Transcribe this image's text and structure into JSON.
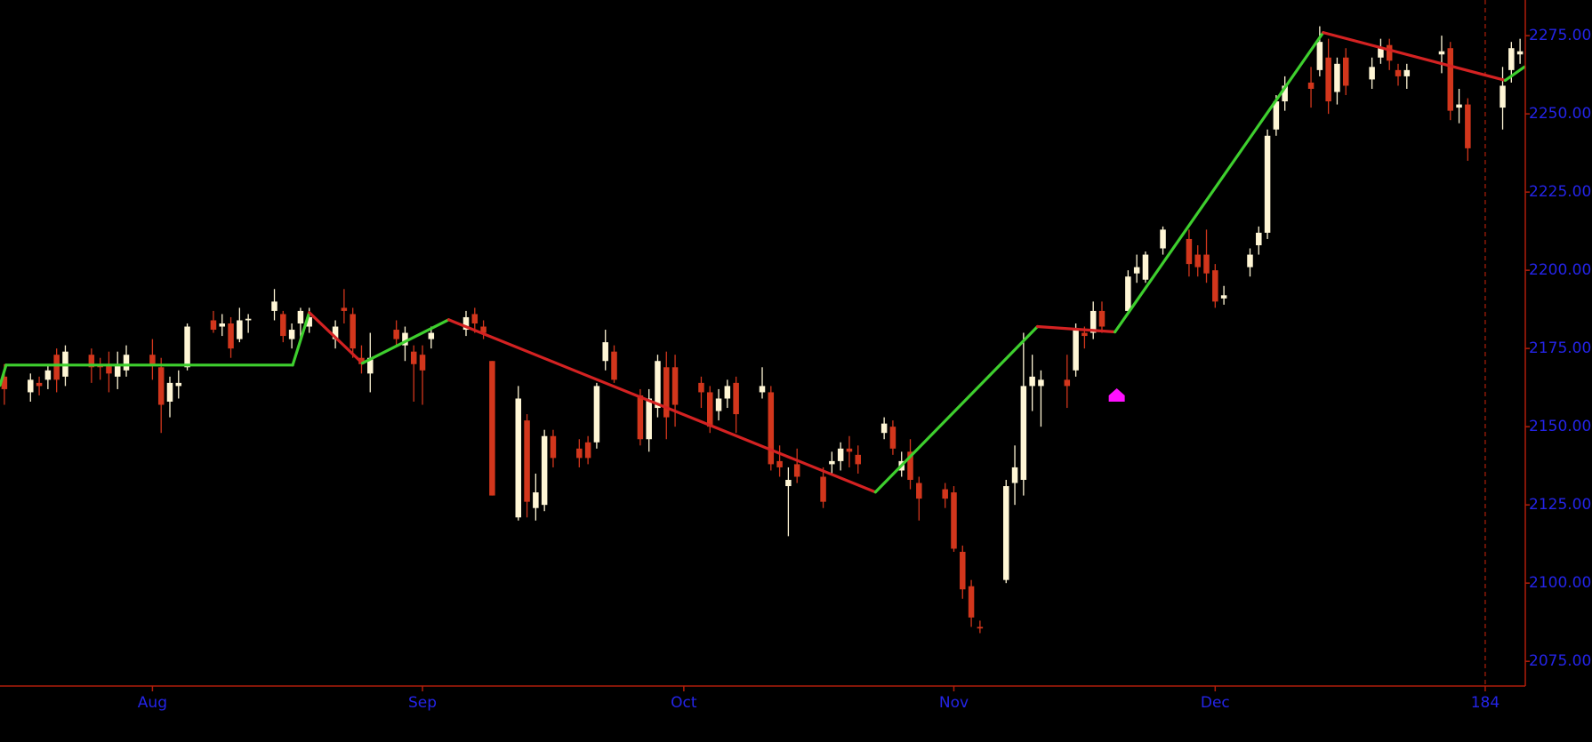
{
  "chart_data": {
    "type": "candlestick",
    "x": [
      14,
      17,
      18,
      19,
      20,
      21,
      24,
      25,
      26,
      27,
      28,
      31,
      32,
      33,
      34,
      35,
      38,
      39,
      40,
      41,
      42,
      45,
      46,
      47,
      48,
      49,
      52,
      53,
      54,
      55,
      56,
      59,
      60,
      61,
      62,
      63,
      67,
      68,
      69,
      70,
      73,
      74,
      75,
      76,
      77,
      80,
      81,
      82,
      83,
      84,
      87,
      88,
      89,
      90,
      91,
      94,
      95,
      96,
      97,
      98,
      101,
      102,
      103,
      104,
      105,
      108,
      109,
      110,
      111,
      112,
      115,
      116,
      117,
      118,
      119,
      122,
      123,
      124,
      125,
      126,
      129,
      130,
      131,
      132,
      133,
      136,
      137,
      138,
      139,
      140,
      143,
      144,
      145,
      147,
      150,
      151,
      152,
      153,
      154,
      157,
      158,
      159,
      160,
      161,
      164,
      165,
      166,
      167,
      168,
      171,
      172,
      173,
      174,
      175,
      179,
      180,
      181,
      182,
      186,
      187,
      188
    ],
    "open": [
      2166,
      2161,
      2164,
      2165,
      2173,
      2166,
      2173,
      2170,
      2170,
      2166,
      2168,
      2173,
      2169,
      2158,
      2163,
      2169,
      2184,
      2182,
      2183,
      2178,
      2184,
      2187,
      2186,
      2178,
      2183,
      2182,
      2178,
      2188,
      2186,
      2172,
      2167,
      2181,
      2176,
      2174,
      2173,
      2178,
      2181,
      2186,
      2182,
      2171,
      2121,
      2152,
      2124,
      2125,
      2147,
      2143,
      2145,
      2145,
      2171,
      2174,
      2160,
      2146,
      2156,
      2169,
      2169,
      2164,
      2161,
      2155,
      2159,
      2164,
      2161,
      2161,
      2139,
      2131,
      2138,
      2134,
      2138,
      2139,
      2143,
      2141,
      2148,
      2150,
      2136,
      2142,
      2132,
      2130,
      2129,
      2110,
      2099,
      2086,
      2101,
      2132,
      2133,
      2163,
      2163,
      2165,
      2168,
      2180,
      2180,
      2187,
      2187,
      2199,
      2197,
      2207,
      2210,
      2205,
      2205,
      2200,
      2191,
      2201,
      2208,
      2212,
      2245,
      2254,
      2260,
      2264,
      2268,
      2257,
      2268,
      2261,
      2268,
      2272,
      2264,
      2262,
      2269,
      2271,
      2252,
      2253,
      2252,
      2264,
      2269
    ],
    "high": [
      2170,
      2167,
      2166,
      2170,
      2175,
      2176,
      2175,
      2172,
      2174,
      2174,
      2176,
      2178,
      2172,
      2166,
      2168,
      2183,
      2187,
      2186,
      2185,
      2188,
      2186,
      2194,
      2187,
      2183,
      2188,
      2188,
      2184,
      2194,
      2188,
      2176,
      2180,
      2184,
      2182,
      2176,
      2176,
      2182,
      2187,
      2188,
      2184,
      2171,
      2163,
      2154,
      2135,
      2149,
      2149,
      2146,
      2147,
      2164,
      2181,
      2176,
      2162,
      2162,
      2173,
      2174,
      2173,
      2166,
      2163,
      2162,
      2165,
      2166,
      2169,
      2163,
      2144,
      2137,
      2143,
      2137,
      2142,
      2145,
      2147,
      2144,
      2153,
      2152,
      2142,
      2146,
      2134,
      2132,
      2131,
      2112,
      2101,
      2088,
      2133,
      2144,
      2180,
      2173,
      2168,
      2173,
      2183,
      2182,
      2190,
      2190,
      2200,
      2205,
      2206,
      2214,
      2213,
      2208,
      2213,
      2202,
      2195,
      2207,
      2214,
      2245,
      2256,
      2262,
      2265,
      2278,
      2274,
      2268,
      2271,
      2268,
      2274,
      2274,
      2266,
      2266,
      2275,
      2273,
      2258,
      2255,
      2265,
      2273,
      2274
    ],
    "low": [
      2157,
      2158,
      2160,
      2162,
      2161,
      2163,
      2164,
      2165,
      2161,
      2162,
      2166,
      2165,
      2148,
      2153,
      2159,
      2168,
      2180,
      2179,
      2172,
      2177,
      2180,
      2184,
      2177,
      2175,
      2178,
      2180,
      2175,
      2183,
      2172,
      2167,
      2161,
      2176,
      2171,
      2158,
      2157,
      2175,
      2179,
      2180,
      2178,
      2128,
      2120,
      2121,
      2120,
      2123,
      2137,
      2137,
      2138,
      2143,
      2168,
      2164,
      2144,
      2142,
      2153,
      2146,
      2150,
      2156,
      2148,
      2152,
      2156,
      2148,
      2159,
      2136,
      2134,
      2115,
      2132,
      2124,
      2135,
      2136,
      2137,
      2135,
      2146,
      2141,
      2134,
      2130,
      2120,
      2124,
      2110,
      2095,
      2086,
      2084,
      2100,
      2125,
      2128,
      2155,
      2150,
      2156,
      2166,
      2175,
      2178,
      2180,
      2186,
      2196,
      2196,
      2205,
      2198,
      2198,
      2196,
      2188,
      2189,
      2198,
      2205,
      2210,
      2243,
      2251,
      2252,
      2262,
      2250,
      2253,
      2256,
      2258,
      2266,
      2264,
      2259,
      2258,
      2263,
      2248,
      2247,
      2235,
      2245,
      2260,
      2266
    ],
    "close": [
      2162,
      2165,
      2163,
      2168,
      2165,
      2174,
      2169,
      2169,
      2167,
      2170,
      2173,
      2170,
      2157,
      2164,
      2164,
      2182,
      2181,
      2183,
      2175,
      2184,
      2184.5,
      2190,
      2179,
      2181,
      2187,
      2185,
      2182,
      2187,
      2175,
      2170,
      2172,
      2178,
      2180,
      2170,
      2168,
      2180,
      2185,
      2183,
      2180,
      2128,
      2159,
      2126,
      2129,
      2147,
      2140,
      2140,
      2140,
      2163,
      2177,
      2165,
      2146,
      2159,
      2171,
      2153,
      2157,
      2161,
      2150,
      2159,
      2163,
      2154,
      2163,
      2138,
      2137,
      2133,
      2134,
      2126,
      2139,
      2143,
      2142,
      2138,
      2151,
      2143,
      2139,
      2133,
      2127,
      2127,
      2111,
      2098,
      2089,
      2085.5,
      2131,
      2137,
      2163,
      2166,
      2165,
      2163,
      2181,
      2179,
      2187,
      2182,
      2198,
      2201,
      2205,
      2213,
      2202,
      2201,
      2199,
      2190,
      2192,
      2205,
      2212,
      2243,
      2254,
      2259,
      2258,
      2273,
      2254,
      2266,
      2259,
      2265,
      2271,
      2267,
      2262,
      2264,
      2270,
      2251,
      2253,
      2239,
      2259,
      2271,
      2270
    ],
    "up_color": "#fff6d5",
    "down_color": "#d2361c",
    "zigzag": {
      "x": [
        13.5,
        14.2,
        47.1,
        49,
        55.1,
        65,
        114,
        132.6,
        141.5,
        165.4,
        186.3,
        188.5
      ],
      "y": [
        2163.2,
        2169.7,
        2169.7,
        2186.5,
        2170.3,
        2184.2,
        2129.1,
        2182,
        2180.3,
        2276,
        2260.7,
        2265
      ],
      "up_color": "#3ecf2e",
      "down_color": "#d42222"
    },
    "markers": {
      "x": [
        141.7
      ],
      "y": [
        2160
      ],
      "color": "#ff10ff"
    },
    "vlines": [
      184
    ],
    "xlim": [
      13.5,
      188.6
    ],
    "xticks": [
      {
        "value": 31,
        "label": "Aug"
      },
      {
        "value": 62,
        "label": "Sep"
      },
      {
        "value": 92,
        "label": "Oct"
      },
      {
        "value": 123,
        "label": "Nov"
      },
      {
        "value": 153,
        "label": "Dec"
      },
      184
    ],
    "ylim": [
      2067.1,
      2286.4
    ],
    "yticks": [
      {
        "value": 2075,
        "label": "2075.00"
      },
      {
        "value": 2100,
        "label": "2100.00"
      },
      {
        "value": 2125,
        "label": "2125.00"
      },
      {
        "value": 2150,
        "label": "2150.00"
      },
      {
        "value": 2175,
        "label": "2175.00"
      },
      {
        "value": 2200,
        "label": "2200.00"
      },
      {
        "value": 2225,
        "label": "2225.00"
      },
      {
        "value": 2250,
        "label": "2250.00"
      },
      {
        "value": 2275,
        "label": "2275.00"
      }
    ],
    "axis_color": "#b01e0a",
    "label_color": "#2424e8"
  }
}
